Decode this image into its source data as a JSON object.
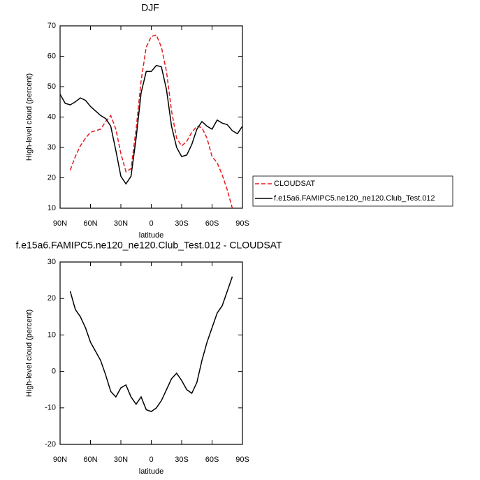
{
  "chart_data": [
    {
      "type": "line",
      "title": "DJF",
      "x_label": "latitude",
      "y_label": "High-level cloud (percent)",
      "x": [
        90,
        85,
        80,
        75,
        70,
        65,
        60,
        55,
        50,
        45,
        40,
        35,
        30,
        25,
        20,
        15,
        10,
        5,
        0,
        -5,
        -10,
        -15,
        -20,
        -25,
        -30,
        -35,
        -40,
        -45,
        -50,
        -55,
        -60,
        -65,
        -70,
        -75,
        -80,
        -85,
        -90
      ],
      "xlim": [
        90,
        -90
      ],
      "xticks": [
        {
          "value": 90,
          "label": "90N"
        },
        {
          "value": 60,
          "label": "60N"
        },
        {
          "value": 30,
          "label": "30N"
        },
        0,
        {
          "value": -30,
          "label": "30S"
        },
        {
          "value": -60,
          "label": "60S"
        },
        {
          "value": -90,
          "label": "90S"
        }
      ],
      "ylim": [
        10,
        70
      ],
      "yticks": [
        10,
        20,
        30,
        40,
        50,
        60,
        70
      ],
      "series": [
        {
          "name": "CLOUDSAT",
          "color": "#e41a1c",
          "dashed": true,
          "values": [
            null,
            null,
            22.5,
            27,
            30.5,
            33,
            35,
            35.5,
            36,
            38.5,
            40.5,
            36,
            28,
            22,
            23,
            36,
            52,
            63,
            66.5,
            67,
            63,
            55,
            42,
            33,
            30.5,
            32,
            35,
            37,
            36.5,
            33,
            27,
            25,
            21,
            16,
            10,
            null,
            null
          ]
        },
        {
          "name": "f.e15a6.FAMIPC5.ne120_ne120.Club_Test.012",
          "color": "#000000",
          "dashed": false,
          "values": [
            47.5,
            44.5,
            44,
            45,
            46.3,
            45.5,
            43.5,
            42,
            40.5,
            39.5,
            37,
            29,
            20.5,
            18,
            20.5,
            33,
            48,
            55,
            55,
            57,
            56.5,
            49,
            37,
            30,
            27,
            27.5,
            31,
            36,
            38.5,
            37,
            36,
            39,
            38,
            37.5,
            35.5,
            34.5,
            37
          ]
        }
      ]
    },
    {
      "type": "line",
      "title": "f.e15a6.FAMIPC5.ne120_ne120.Club_Test.012 - CLOUDSAT",
      "x_label": "latitude",
      "y_label": "High-level cloud (percent)",
      "x": [
        80,
        75,
        70,
        65,
        60,
        55,
        50,
        45,
        40,
        35,
        30,
        25,
        20,
        15,
        10,
        5,
        0,
        -5,
        -10,
        -15,
        -20,
        -25,
        -30,
        -35,
        -40,
        -45,
        -50,
        -55,
        -60,
        -65,
        -70,
        -75,
        -80
      ],
      "xlim": [
        90,
        -90
      ],
      "xticks": [
        {
          "value": 90,
          "label": "90N"
        },
        {
          "value": 60,
          "label": "60N"
        },
        {
          "value": 30,
          "label": "30N"
        },
        0,
        {
          "value": -30,
          "label": "30S"
        },
        {
          "value": -60,
          "label": "60S"
        },
        {
          "value": -90,
          "label": "90S"
        }
      ],
      "ylim": [
        -20,
        30
      ],
      "yticks": [
        -20,
        -10,
        0,
        10,
        20,
        30
      ],
      "series": [
        {
          "color": "#000000",
          "dashed": false,
          "values": [
            22,
            17,
            15,
            12,
            8,
            5.5,
            3,
            -1,
            -5.5,
            -7,
            -4.5,
            -3.7,
            -7,
            -9,
            -7,
            -10.5,
            -11,
            -10,
            -8,
            -5,
            -2,
            -0.5,
            -2.5,
            -5,
            -6,
            -3,
            3,
            8,
            12,
            16,
            18,
            22,
            26
          ]
        }
      ]
    }
  ]
}
